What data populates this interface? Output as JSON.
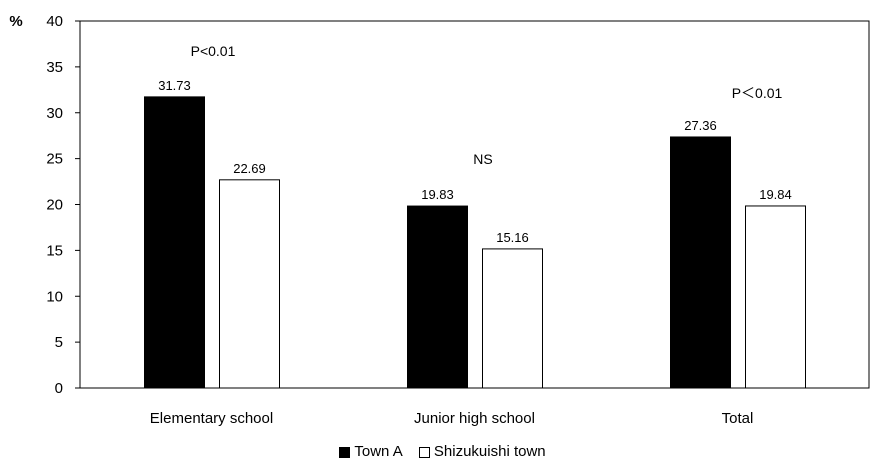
{
  "chart_data": {
    "type": "bar",
    "ylabel": "%",
    "ylim": [
      0,
      40
    ],
    "yticks": [
      0,
      5,
      10,
      15,
      20,
      25,
      30,
      35,
      40
    ],
    "categories": [
      "Elementary school",
      "Junior high school",
      "Total"
    ],
    "series": [
      {
        "name": "Town A",
        "values": [
          31.73,
          19.83,
          27.36
        ],
        "color": "#000000"
      },
      {
        "name": "Shizukuishi town",
        "values": [
          22.69,
          15.16,
          19.84
        ],
        "color": "#ffffff"
      }
    ],
    "data_labels": [
      [
        "31.73",
        "19.83",
        "27.36"
      ],
      [
        "22.69",
        "15.16",
        "19.84"
      ]
    ],
    "annotations": [
      "P<0.01",
      "NS",
      "P＜0.01"
    ],
    "grid": false,
    "legend_position": "bottom"
  }
}
